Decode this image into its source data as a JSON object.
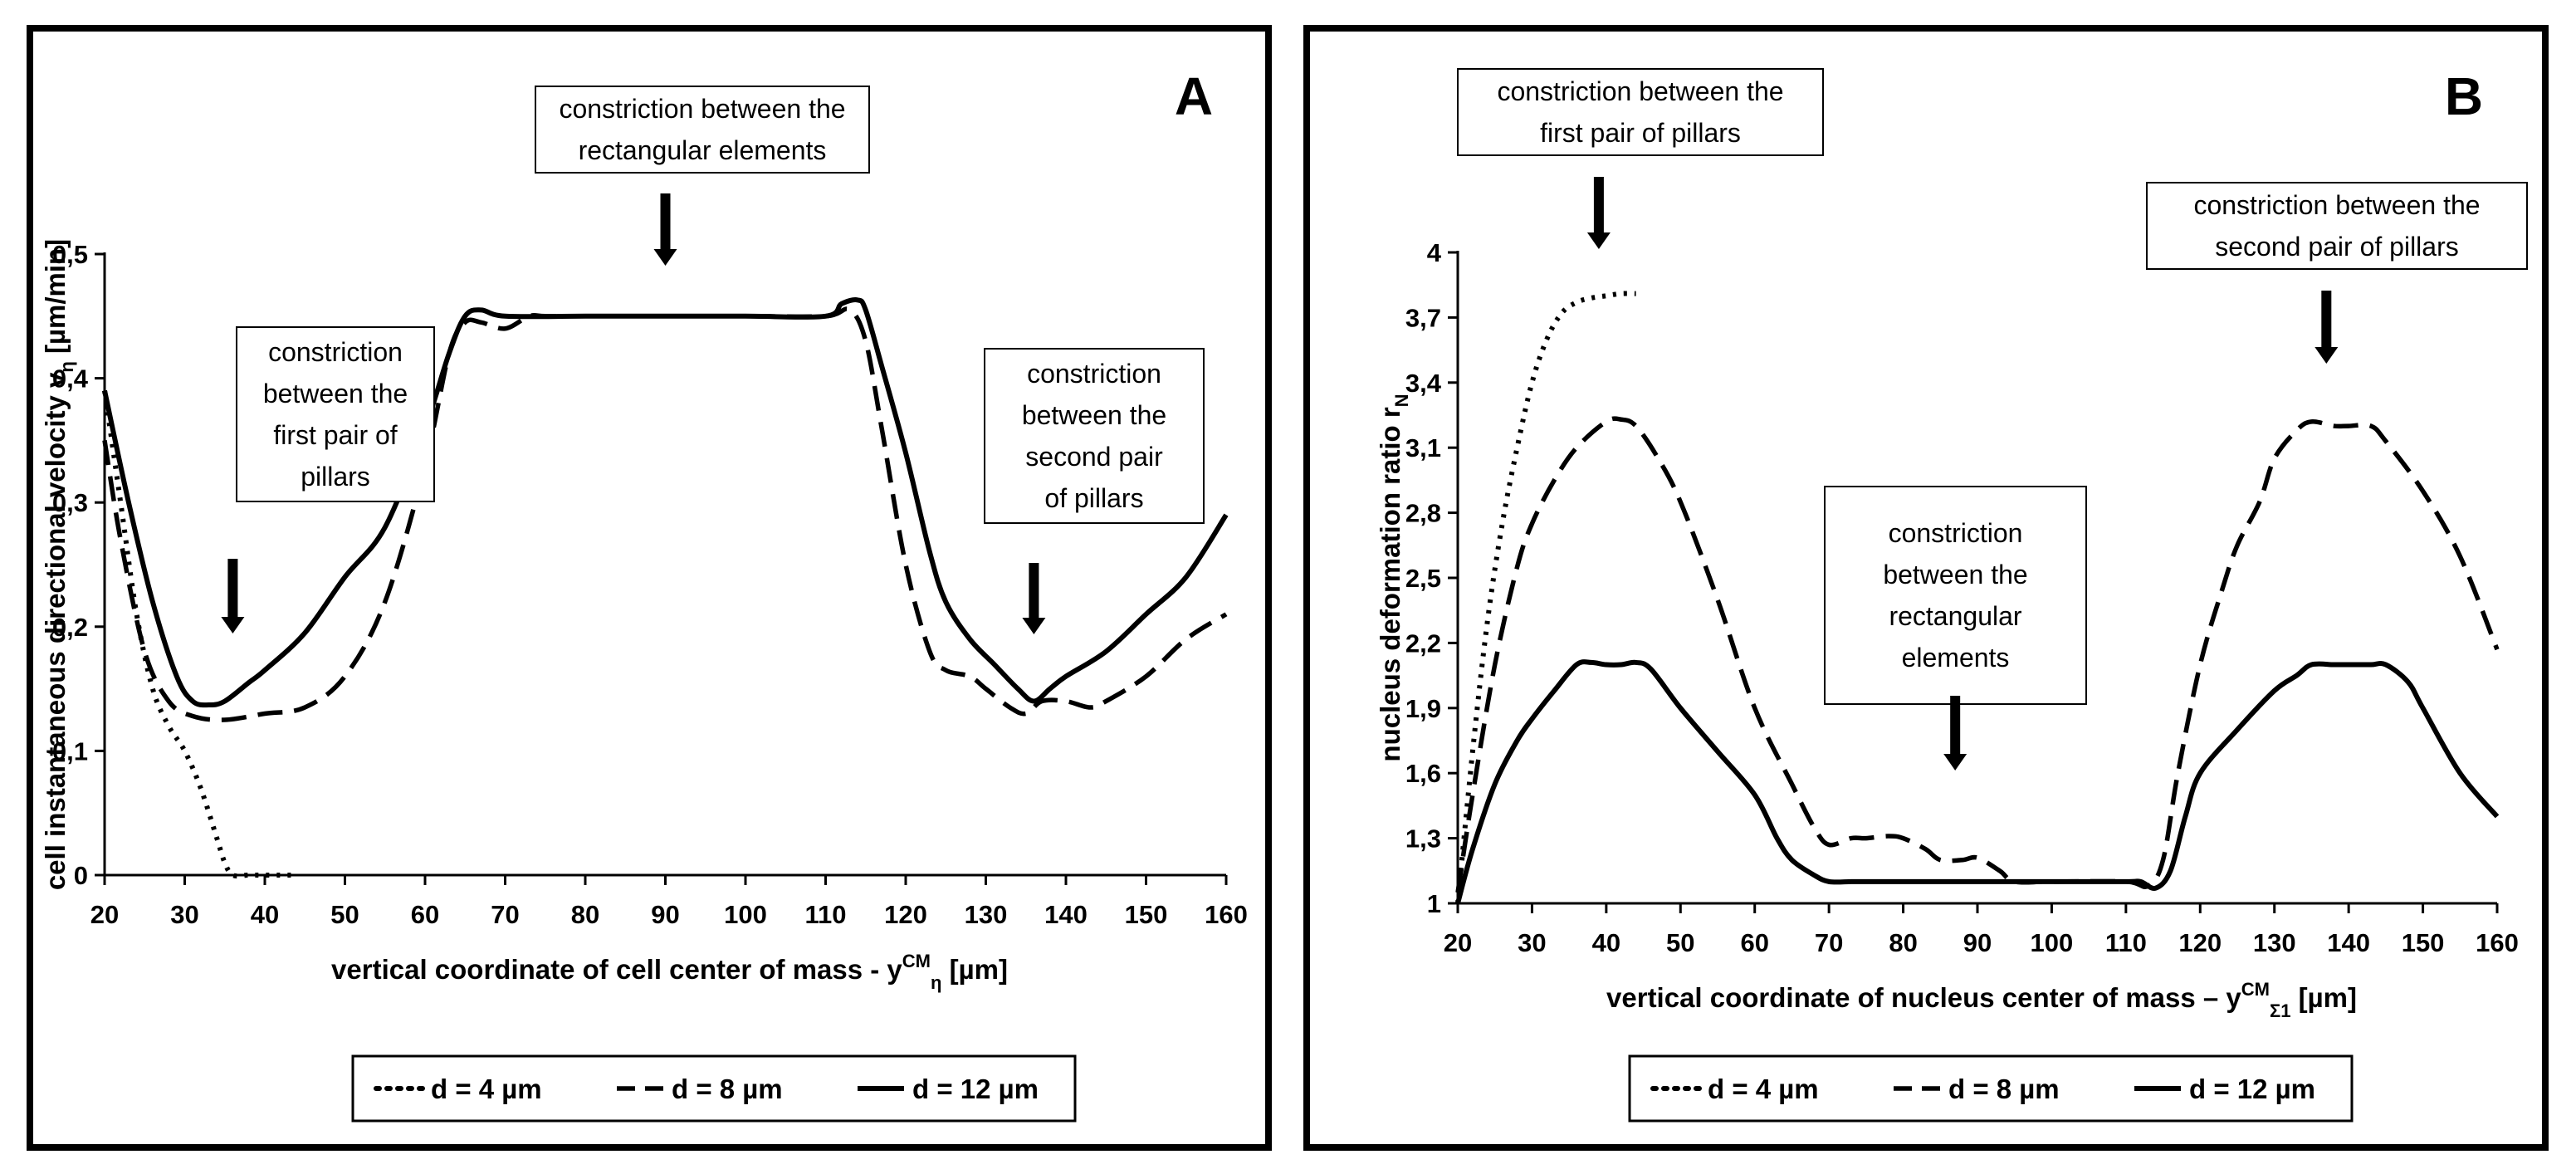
{
  "chart_data": [
    {
      "type": "line",
      "panel_label": "A",
      "xlabel": "vertical coordinate of cell center of mass - y",
      "xlabel_sup": "CM",
      "xlabel_sub": "η",
      "xlabel_tail": " [µm]",
      "ylabel": "cell instantaneous directional velocity v",
      "ylabel_sub": "η",
      "ylabel_tail": " [µm/min]",
      "xlim": [
        20,
        160
      ],
      "ylim": [
        0,
        0.5
      ],
      "x_ticks": [
        20,
        30,
        40,
        50,
        60,
        70,
        80,
        90,
        100,
        110,
        120,
        130,
        140,
        150,
        160
      ],
      "y_ticks": [
        0,
        0.1,
        0.2,
        0.3,
        0.4,
        0.5
      ],
      "y_tick_labels": [
        "0",
        "0,1",
        "0,2",
        "0,3",
        "0,4",
        "0,5"
      ],
      "grid": false,
      "legend_position": "bottom",
      "series": [
        {
          "name": "d = 4 µm",
          "style": "dotted",
          "x": [
            20,
            22,
            24,
            26,
            28,
            30,
            32,
            34,
            35,
            36,
            38,
            40,
            42,
            44
          ],
          "y": [
            0.39,
            0.3,
            0.21,
            0.15,
            0.12,
            0.1,
            0.07,
            0.03,
            0.01,
            0,
            0,
            0,
            0,
            0
          ]
        },
        {
          "name": "d = 8 µm",
          "style": "dashed",
          "x": [
            20,
            22,
            25,
            28,
            31,
            35,
            40,
            45,
            50,
            55,
            60,
            63,
            65,
            67,
            70,
            73,
            75,
            80,
            90,
            100,
            110,
            113,
            115,
            117,
            120,
            123,
            125,
            128,
            130,
            133,
            135,
            137,
            140,
            143,
            145,
            150,
            155,
            160
          ],
          "y": [
            0.35,
            0.27,
            0.18,
            0.14,
            0.128,
            0.125,
            0.13,
            0.135,
            0.16,
            0.22,
            0.33,
            0.42,
            0.445,
            0.445,
            0.44,
            0.45,
            0.45,
            0.45,
            0.45,
            0.45,
            0.45,
            0.455,
            0.43,
            0.36,
            0.25,
            0.18,
            0.165,
            0.16,
            0.15,
            0.135,
            0.13,
            0.14,
            0.14,
            0.135,
            0.14,
            0.16,
            0.19,
            0.21
          ]
        },
        {
          "name": "d = 12 µm",
          "style": "solid",
          "x": [
            20,
            23,
            26,
            29,
            31,
            33,
            35,
            38,
            40,
            45,
            50,
            55,
            60,
            63,
            65,
            67,
            70,
            80,
            90,
            100,
            110,
            112,
            114,
            115,
            117,
            120,
            123,
            125,
            128,
            131,
            134,
            136,
            138,
            140,
            145,
            150,
            155,
            160
          ],
          "y": [
            0.39,
            0.3,
            0.22,
            0.16,
            0.14,
            0.137,
            0.14,
            0.155,
            0.165,
            0.195,
            0.24,
            0.28,
            0.36,
            0.42,
            0.45,
            0.455,
            0.45,
            0.45,
            0.45,
            0.45,
            0.45,
            0.46,
            0.463,
            0.455,
            0.41,
            0.34,
            0.26,
            0.22,
            0.19,
            0.17,
            0.15,
            0.14,
            0.15,
            0.16,
            0.18,
            0.21,
            0.24,
            0.29
          ]
        }
      ],
      "annotations": [
        {
          "lines": [
            "constriction between the",
            "rectangular  elements"
          ],
          "arrow_x": 90
        },
        {
          "lines": [
            "constriction",
            "between the",
            "first pair of",
            "pillars"
          ],
          "arrow_x": 36
        },
        {
          "lines": [
            "constriction",
            "between the",
            "second pair",
            "of pillars"
          ],
          "arrow_x": 136
        }
      ]
    },
    {
      "type": "line",
      "panel_label": "B",
      "xlabel": "vertical coordinate of nucleus center of mass – y",
      "xlabel_sup": "CM",
      "xlabel_sub": "Σ1",
      "xlabel_tail": " [µm]",
      "ylabel": "nucleus deformation ratio r",
      "ylabel_sub": "N",
      "ylabel_tail": "",
      "xlim": [
        20,
        160
      ],
      "ylim": [
        1,
        4
      ],
      "x_ticks": [
        20,
        30,
        40,
        50,
        60,
        70,
        80,
        90,
        100,
        110,
        120,
        130,
        140,
        150,
        160
      ],
      "y_ticks": [
        1,
        1.3,
        1.6,
        1.9,
        2.2,
        2.5,
        2.8,
        3.1,
        3.4,
        3.7,
        4
      ],
      "y_tick_labels": [
        "1",
        "1,3",
        "1,6",
        "1,9",
        "2,2",
        "2,5",
        "2,8",
        "3,1",
        "3,4",
        "3,7",
        "4"
      ],
      "grid": false,
      "legend_position": "bottom",
      "series": [
        {
          "name": "d = 4 µm",
          "style": "dotted",
          "x": [
            20,
            22,
            24,
            26,
            28,
            30,
            32,
            34,
            36,
            38,
            40,
            42,
            44
          ],
          "y": [
            1,
            1.7,
            2.3,
            2.75,
            3.1,
            3.4,
            3.6,
            3.72,
            3.77,
            3.79,
            3.8,
            3.81,
            3.81
          ]
        },
        {
          "name": "d = 8 µm",
          "style": "dashed",
          "x": [
            20,
            22,
            25,
            28,
            30,
            33,
            36,
            40,
            42,
            44,
            47,
            50,
            55,
            60,
            65,
            68,
            70,
            73,
            75,
            78,
            80,
            83,
            85,
            88,
            90,
            93,
            95,
            100,
            110,
            113,
            115,
            117,
            120,
            123,
            125,
            128,
            130,
            133,
            135,
            138,
            140,
            143,
            145,
            150,
            155,
            160
          ],
          "y": [
            1.05,
            1.5,
            2.1,
            2.55,
            2.75,
            2.95,
            3.1,
            3.22,
            3.23,
            3.2,
            3.05,
            2.85,
            2.4,
            1.9,
            1.55,
            1.35,
            1.27,
            1.3,
            1.3,
            1.31,
            1.3,
            1.25,
            1.2,
            1.2,
            1.21,
            1.15,
            1.1,
            1.1,
            1.1,
            1.08,
            1.2,
            1.6,
            2.1,
            2.45,
            2.65,
            2.85,
            3.05,
            3.18,
            3.22,
            3.2,
            3.2,
            3.2,
            3.13,
            2.9,
            2.6,
            2.17
          ]
        },
        {
          "name": "d = 12 µm",
          "style": "solid",
          "x": [
            20,
            22,
            25,
            28,
            30,
            33,
            36,
            38,
            40,
            42,
            44,
            46,
            50,
            55,
            60,
            63,
            65,
            68,
            70,
            73,
            75,
            80,
            90,
            100,
            110,
            112,
            114,
            116,
            118,
            120,
            125,
            130,
            133,
            135,
            138,
            140,
            143,
            145,
            148,
            150,
            155,
            160
          ],
          "y": [
            1,
            1.25,
            1.55,
            1.75,
            1.85,
            1.98,
            2.1,
            2.11,
            2.1,
            2.1,
            2.11,
            2.08,
            1.9,
            1.7,
            1.5,
            1.3,
            1.2,
            1.13,
            1.1,
            1.1,
            1.1,
            1.1,
            1.1,
            1.1,
            1.1,
            1.1,
            1.07,
            1.15,
            1.4,
            1.6,
            1.8,
            1.98,
            2.05,
            2.1,
            2.1,
            2.1,
            2.1,
            2.1,
            2.02,
            1.9,
            1.6,
            1.4
          ]
        }
      ],
      "annotations": [
        {
          "lines": [
            "constriction between the",
            "first pair of pillars"
          ],
          "arrow_x": 39
        },
        {
          "lines": [
            "constriction between the",
            "second pair of pillars"
          ],
          "arrow_x": 137
        },
        {
          "lines": [
            "constriction",
            "between the",
            "rectangular",
            "elements"
          ],
          "arrow_x": 87
        }
      ]
    }
  ]
}
